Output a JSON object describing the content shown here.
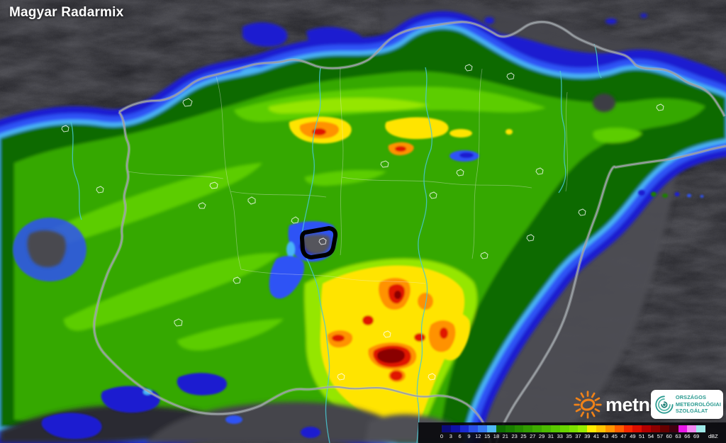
{
  "title": "Magyar Radarmix",
  "legend": {
    "unit": "dBZ",
    "ticks": [
      "0",
      "3",
      "6",
      "9",
      "12",
      "15",
      "18",
      "21",
      "23",
      "25",
      "27",
      "29",
      "31",
      "33",
      "35",
      "37",
      "39",
      "41",
      "43",
      "45",
      "47",
      "49",
      "51",
      "54",
      "57",
      "60",
      "63",
      "66",
      "69"
    ],
    "colors": [
      "#0b0b7a",
      "#0f12a8",
      "#1a2ad2",
      "#2a50e8",
      "#3579f2",
      "#4fb9f5",
      "#0f6f00",
      "#1a7e00",
      "#268d00",
      "#329c00",
      "#3eab00",
      "#4bba00",
      "#59c900",
      "#69d500",
      "#7de100",
      "#97ec00",
      "#ffec00",
      "#ffc400",
      "#ff9400",
      "#ff5e00",
      "#f42800",
      "#dc0f00",
      "#b40000",
      "#8d0000",
      "#660000",
      "#400010",
      "#e816e8",
      "#f287f2",
      "#9fe9e9"
    ]
  },
  "logos": {
    "metnet": {
      "text": "metnet",
      "sun_color": "#f08218"
    },
    "omsz": {
      "line1": "ORSZÁGOS",
      "line2": "METEOROLÓGIAI",
      "line3": "SZOLGÁLAT",
      "color": "#2a9a90"
    }
  },
  "map": {
    "warning_outline_color": "#000000",
    "border_color": "#9aa0a4",
    "river_color": "#49c8d2"
  }
}
